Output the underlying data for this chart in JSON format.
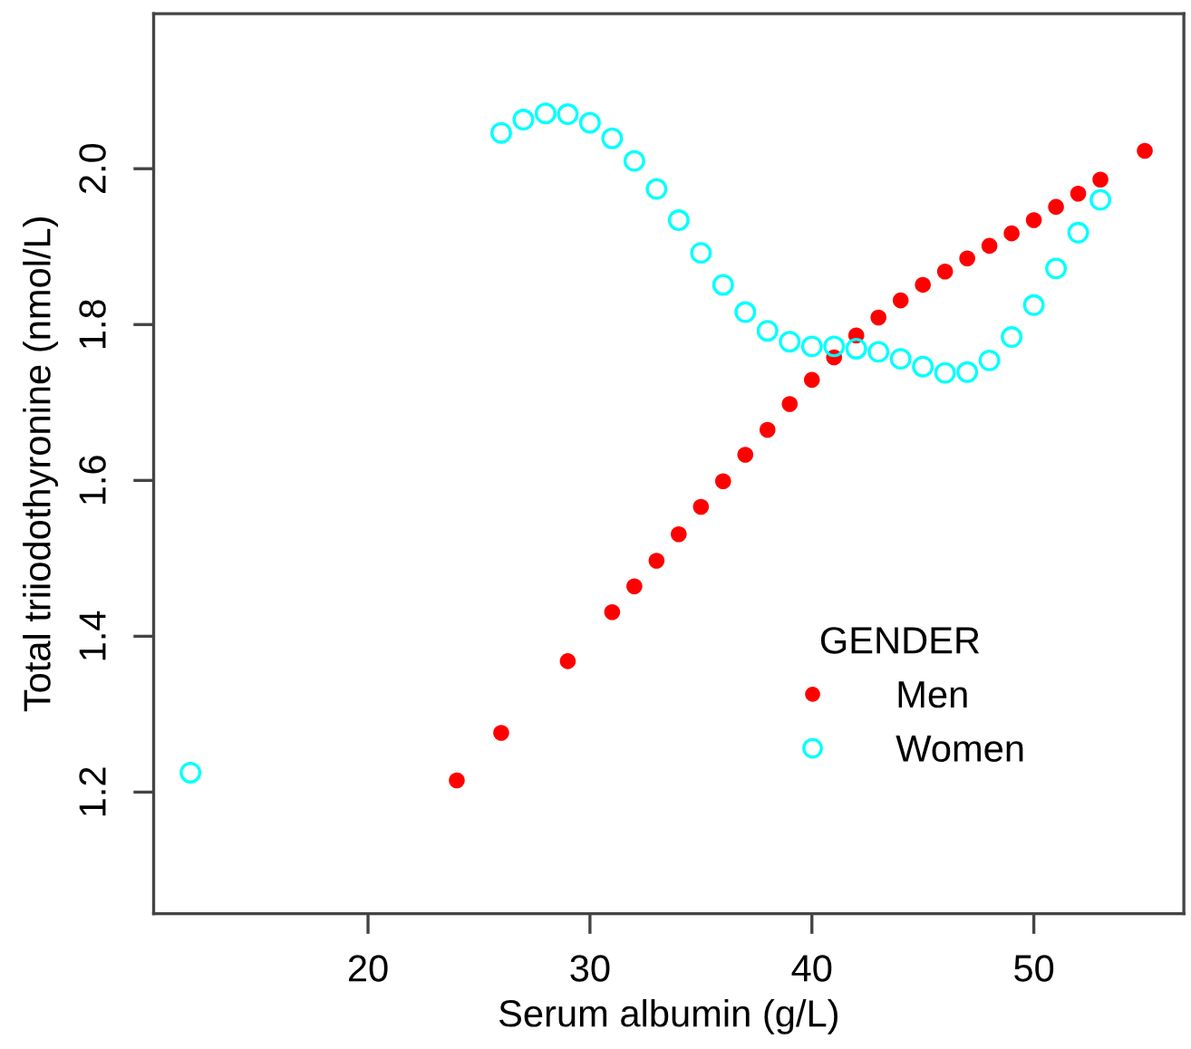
{
  "chart_data": {
    "type": "scatter",
    "xlabel": "Serum albumin (g/L)",
    "ylabel": "Total triiodothyronine (nmol/L)",
    "legend_title": "GENDER",
    "xlim": [
      10.34,
      56.76
    ],
    "ylim": [
      1.044,
      2.199
    ],
    "xticks": [
      20,
      30,
      40,
      50
    ],
    "yticks": [
      {
        "value": 1.2,
        "label": "1.2"
      },
      {
        "value": 1.4,
        "label": "1.4"
      },
      {
        "value": 1.6,
        "label": "1.6"
      },
      {
        "value": 1.8,
        "label": "1.8"
      },
      {
        "value": 2.0,
        "label": "2.0"
      }
    ],
    "grid": false,
    "legend": "right",
    "marker": "circle",
    "series": [
      {
        "name": "Men",
        "color": "#ff0000",
        "x": [
          24,
          26,
          29,
          31,
          32,
          33,
          34,
          35,
          36,
          37,
          38,
          39,
          40,
          41,
          42,
          43,
          44,
          45,
          46,
          47,
          48,
          49,
          50,
          51,
          52,
          53,
          55
        ],
        "values": [
          1.215,
          1.276,
          1.368,
          1.431,
          1.464,
          1.497,
          1.531,
          1.566,
          1.599,
          1.633,
          1.665,
          1.698,
          1.729,
          1.758,
          1.786,
          1.809,
          1.831,
          1.851,
          1.868,
          1.885,
          1.901,
          1.917,
          1.934,
          1.951,
          1.968,
          1.986,
          2.023
        ]
      },
      {
        "name": "Women",
        "color": "#00ffff",
        "x": [
          12,
          26,
          27,
          28,
          29,
          30,
          31,
          32,
          33,
          34,
          35,
          36,
          37,
          38,
          39,
          40,
          41,
          42,
          43,
          44,
          45,
          46,
          47,
          48,
          49,
          50,
          51,
          52,
          53
        ],
        "values": [
          1.225,
          2.046,
          2.063,
          2.071,
          2.07,
          2.059,
          2.039,
          2.01,
          1.974,
          1.934,
          1.892,
          1.851,
          1.816,
          1.792,
          1.778,
          1.772,
          1.772,
          1.769,
          1.765,
          1.756,
          1.746,
          1.738,
          1.739,
          1.754,
          1.784,
          1.825,
          1.872,
          1.918,
          1.96
        ]
      }
    ]
  }
}
